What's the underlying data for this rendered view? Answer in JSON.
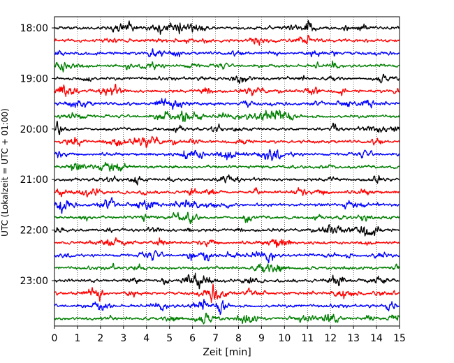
{
  "chart_data": {
    "type": "line",
    "title": "",
    "xlabel": "Zeit  [min]",
    "ylabel": "UTC (Lokalzeit = UTC + 01:00)",
    "xlim": [
      0,
      15
    ],
    "x_ticks": [
      "0",
      "1",
      "2",
      "3",
      "4",
      "5",
      "6",
      "7",
      "8",
      "9",
      "10",
      "11",
      "12",
      "13",
      "14",
      "15"
    ],
    "y_tick_labels": [
      "18:00",
      "19:00",
      "20:00",
      "21:00",
      "22:00",
      "23:00"
    ],
    "y_tick_rows": [
      0,
      4,
      8,
      12,
      16,
      20
    ],
    "row_interval_min": 15,
    "start_time": "18:00",
    "trace_count": 24,
    "trace_colors": [
      "#000000",
      "#ff0000",
      "#0000ff",
      "#007f00"
    ],
    "grid": "vertical dotted at each minute",
    "legend": "none"
  }
}
